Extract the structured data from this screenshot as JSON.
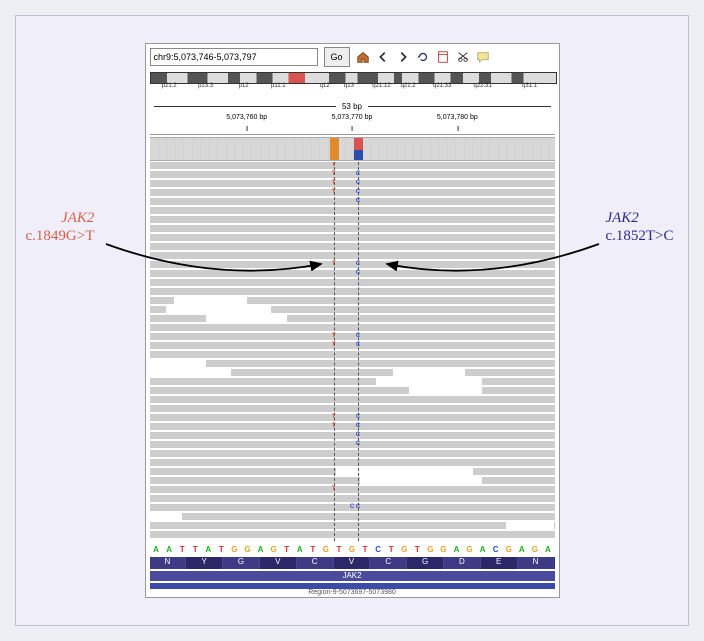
{
  "toolbar": {
    "location": "chr9:5,073,746-5,073,797",
    "go_label": "Go",
    "icons": [
      "home-icon",
      "arrow-left-icon",
      "arrow-right-icon",
      "refresh-icon",
      "pin-icon",
      "scissors-icon",
      "comment-icon"
    ]
  },
  "ideogram": {
    "bands": [
      "p21.2",
      "p13.3",
      "p12",
      "p11.1",
      "q12",
      "q13",
      "q21.12",
      "q21.2",
      "q21.33",
      "q22.31",
      "q31.1"
    ],
    "band_positions_pct": [
      3,
      12,
      22,
      30,
      42,
      48,
      55,
      62,
      70,
      80,
      92
    ]
  },
  "ruler": {
    "span_label": "53 bp",
    "ticks": [
      {
        "label": "5,073,760 bp",
        "pos_pct": 24
      },
      {
        "label": "5,073,770 bp",
        "pos_pct": 50
      },
      {
        "label": "5,073,780 bp",
        "pos_pct": 76
      }
    ]
  },
  "variant_positions": {
    "orange_pct": 45.5,
    "redblue_pct": 51.5,
    "dash_left_pct": 45.5,
    "dash_right_pct": 51.5
  },
  "callouts": {
    "left_gene": "JAK2",
    "left_mut": "c.1849G>T",
    "right_gene": "JAK2",
    "right_mut": "c.1852T>C"
  },
  "reads": {
    "row_count": 42,
    "basecalls": [
      {
        "row": 0,
        "pct": 45.5,
        "base": "T"
      },
      {
        "row": 1,
        "pct": 45.5,
        "base": "T"
      },
      {
        "row": 1,
        "pct": 51.5,
        "base": "C"
      },
      {
        "row": 2,
        "pct": 45.5,
        "base": "T"
      },
      {
        "row": 2,
        "pct": 51.5,
        "base": "C"
      },
      {
        "row": 3,
        "pct": 45.5,
        "base": "T"
      },
      {
        "row": 3,
        "pct": 51.5,
        "base": "C"
      },
      {
        "row": 4,
        "pct": 51.5,
        "base": "C"
      },
      {
        "row": 11,
        "pct": 45.5,
        "base": "T"
      },
      {
        "row": 11,
        "pct": 51.5,
        "base": "C"
      },
      {
        "row": 12,
        "pct": 51.5,
        "base": "C"
      },
      {
        "row": 19,
        "pct": 45.5,
        "base": "T"
      },
      {
        "row": 19,
        "pct": 51.5,
        "base": "C"
      },
      {
        "row": 20,
        "pct": 45.5,
        "base": "T"
      },
      {
        "row": 20,
        "pct": 51.5,
        "base": "C"
      },
      {
        "row": 28,
        "pct": 45.5,
        "base": "T"
      },
      {
        "row": 28,
        "pct": 51.5,
        "base": "C"
      },
      {
        "row": 29,
        "pct": 45.5,
        "base": "T"
      },
      {
        "row": 29,
        "pct": 51.5,
        "base": "C"
      },
      {
        "row": 30,
        "pct": 51.5,
        "base": "C"
      },
      {
        "row": 31,
        "pct": 51.5,
        "base": "C"
      },
      {
        "row": 36,
        "pct": 45.5,
        "base": "T"
      },
      {
        "row": 38,
        "pct": 51.5,
        "base": "C"
      },
      {
        "row": 38,
        "pct": 50.0,
        "base": "C"
      }
    ],
    "gaps": [
      {
        "row": 15,
        "left_pct": 6,
        "width_pct": 18
      },
      {
        "row": 16,
        "left_pct": 4,
        "width_pct": 26
      },
      {
        "row": 17,
        "left_pct": 14,
        "width_pct": 20
      },
      {
        "row": 22,
        "left_pct": 0,
        "width_pct": 14
      },
      {
        "row": 23,
        "left_pct": 0,
        "width_pct": 20
      },
      {
        "row": 23,
        "left_pct": 60,
        "width_pct": 18
      },
      {
        "row": 24,
        "left_pct": 56,
        "width_pct": 26
      },
      {
        "row": 25,
        "left_pct": 64,
        "width_pct": 18
      },
      {
        "row": 34,
        "left_pct": 46,
        "width_pct": 34
      },
      {
        "row": 35,
        "left_pct": 52,
        "width_pct": 30
      },
      {
        "row": 39,
        "left_pct": 0,
        "width_pct": 8
      },
      {
        "row": 40,
        "left_pct": 88,
        "width_pct": 12
      }
    ]
  },
  "sequence": {
    "nucleotides": [
      "A",
      "A",
      "T",
      "T",
      "A",
      "T",
      "G",
      "G",
      "A",
      "G",
      "T",
      "A",
      "T",
      "G",
      "T",
      "G",
      "T",
      "C",
      "T",
      "G",
      "T",
      "G",
      "G",
      "A",
      "G",
      "A",
      "C",
      "G",
      "A",
      "G",
      "A"
    ],
    "nt_colors": {
      "A": "#1AAF1A",
      "T": "#D93030",
      "G": "#E0A52B",
      "C": "#2050D0"
    },
    "amino_acids": [
      "N",
      "Y",
      "G",
      "V",
      "C",
      "V",
      "C",
      "G",
      "D",
      "E",
      "N"
    ],
    "gene_label": "JAK2",
    "region_label": "Region-9-5073697-5073980"
  }
}
